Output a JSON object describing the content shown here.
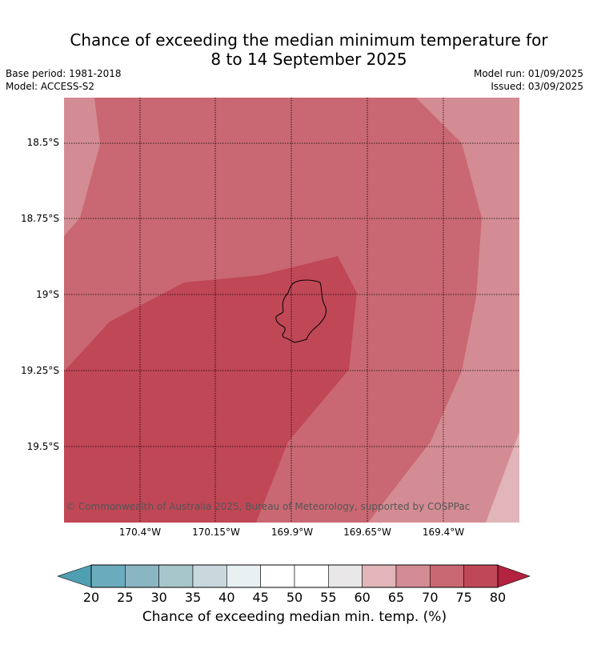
{
  "title_line1": "Chance of exceeding the median minimum temperature for",
  "title_line2": "8 to 14 September 2025",
  "base_period": "Base period: 1981-2018",
  "model": "Model: ACCESS-S2",
  "model_run": "Model run: 01/09/2025",
  "issued": "Issued: 03/09/2025",
  "lat_labels": [
    "18.5°S",
    "18.75°S",
    "19°S",
    "19.25°S",
    "19.5°S"
  ],
  "lon_labels": [
    "170.4°W",
    "170.15°W",
    "169.9°W",
    "169.65°W",
    "169.4°W"
  ],
  "copyright": "© Commonwealth of Australia 2025, Bureau of Meteorology, supported by COSPPac",
  "colorbar": {
    "label": "Chance of exceeding median min. temp. (%)",
    "ticks": [
      "20",
      "25",
      "30",
      "35",
      "40",
      "45",
      "50",
      "55",
      "60",
      "65",
      "70",
      "75",
      "80"
    ],
    "colors": [
      "#6aacbd",
      "#8ab5c2",
      "#a7c6cb",
      "#c8d8dc",
      "#e8f0f1",
      "#ffffff",
      "#ffffff",
      "#e9e7e8",
      "#e1b5b9",
      "#d48c94",
      "#c96872",
      "#c04756"
    ],
    "under_color": "#4f9fb3",
    "over_color": "#b3223f"
  },
  "map_colors": {
    "c60_65": "#e1b5b9",
    "c65_70": "#d48c94",
    "c70_75": "#c96872",
    "c75_80": "#c04756",
    "grid": "#000000",
    "coast": "#000000"
  }
}
